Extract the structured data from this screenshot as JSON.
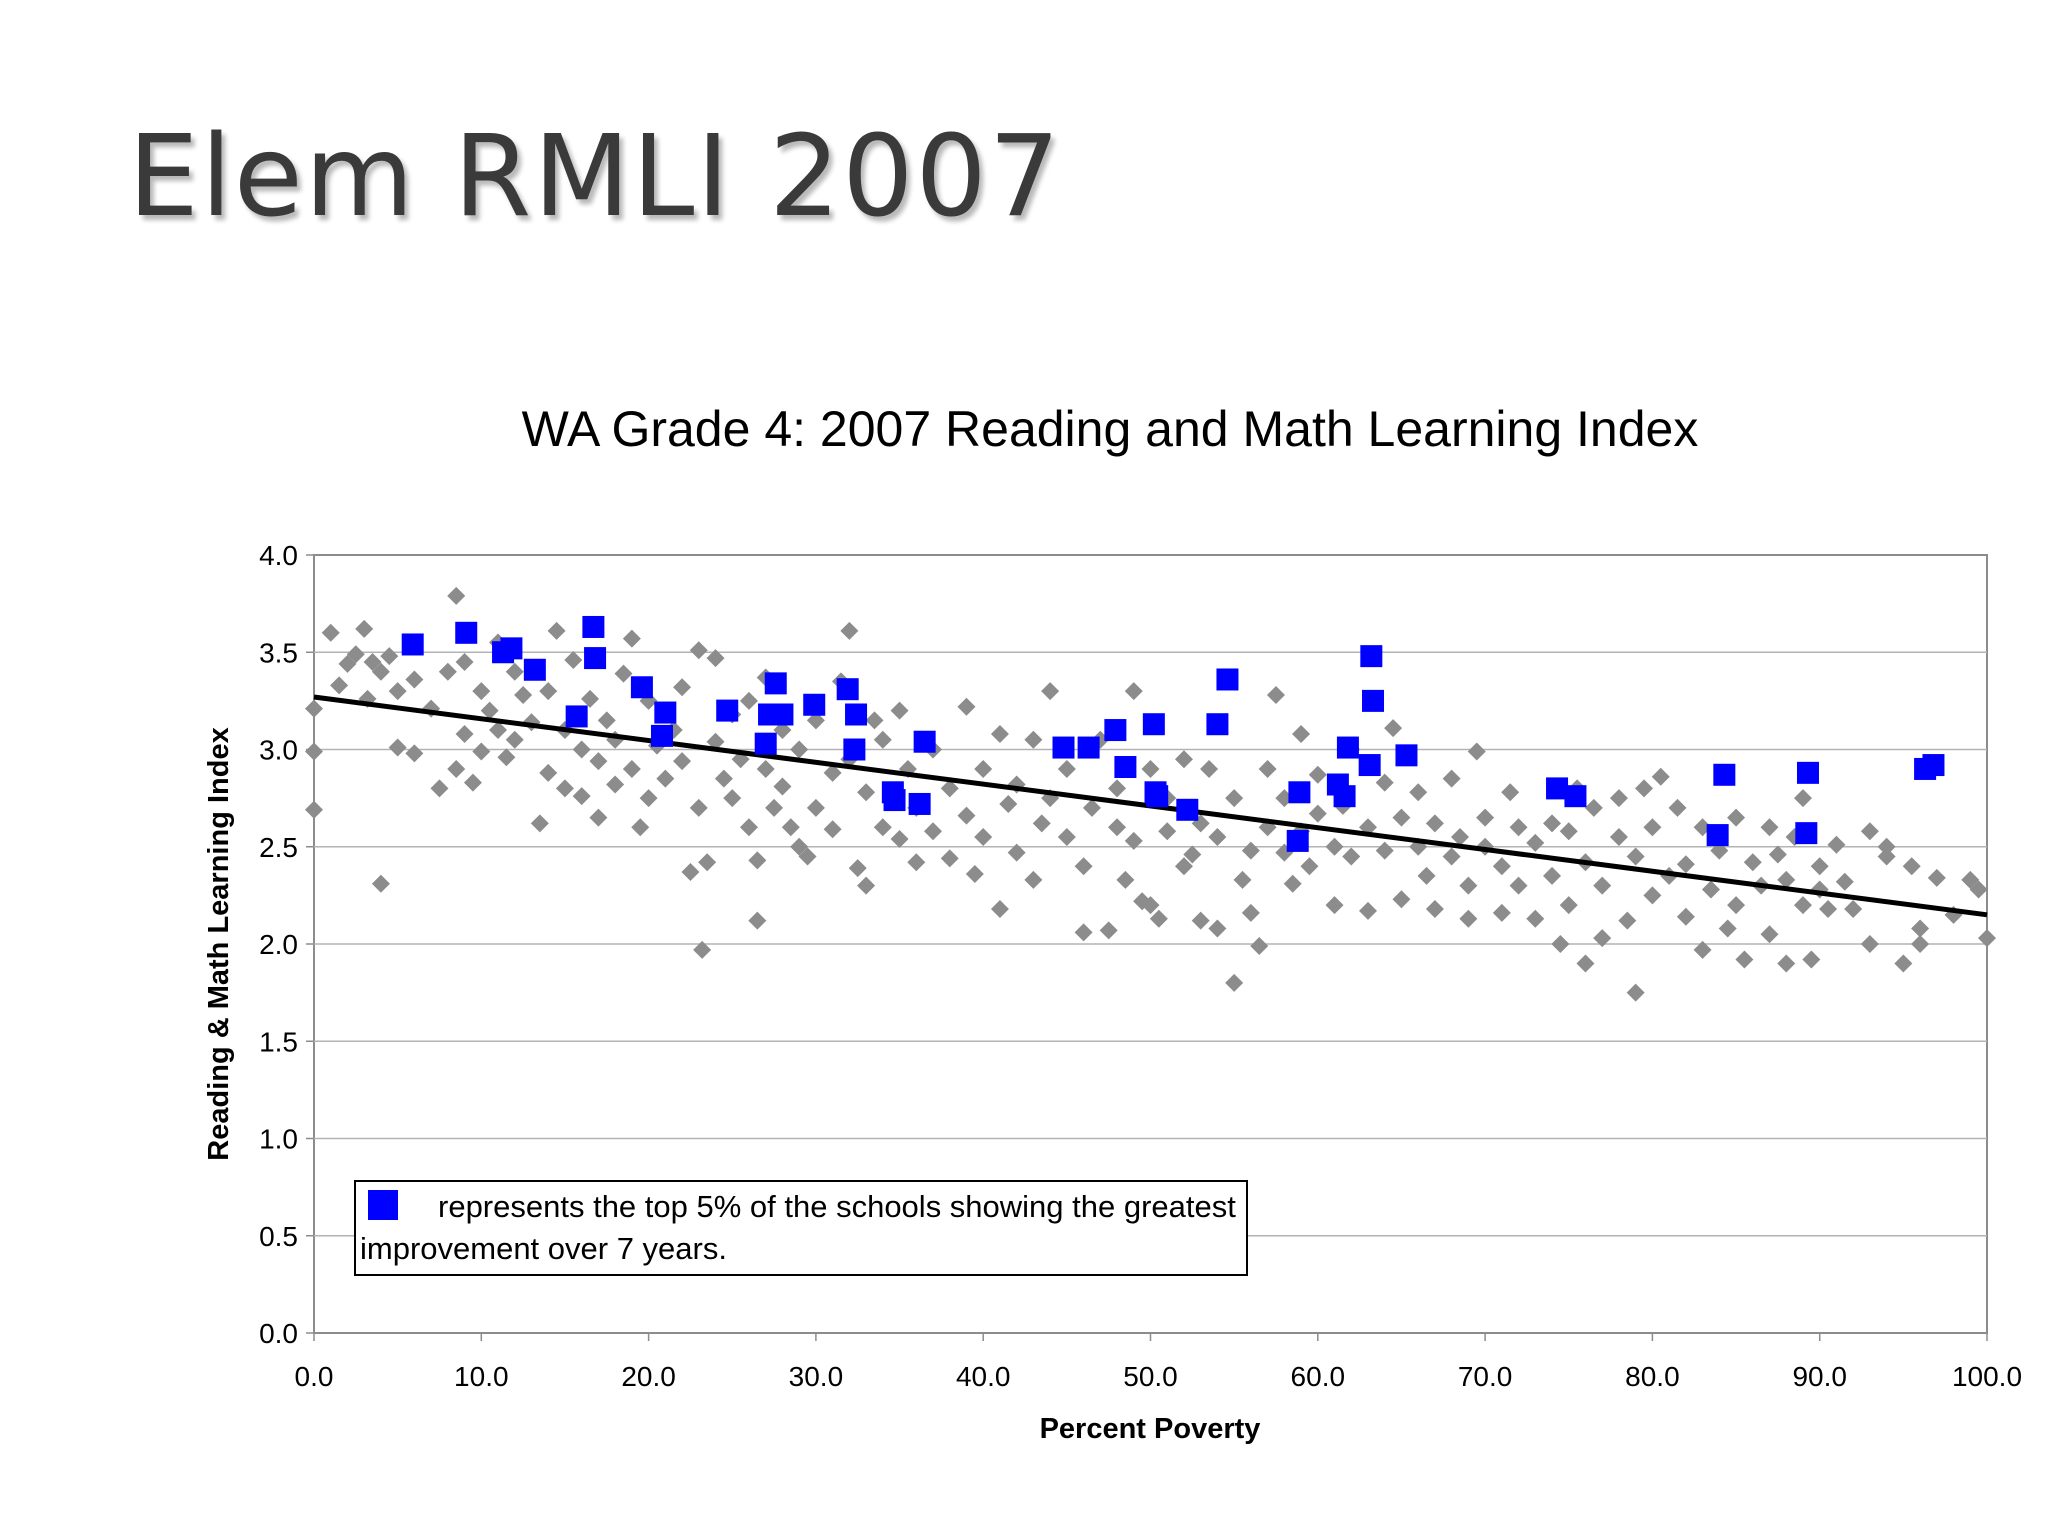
{
  "slide": {
    "title": "Elem RMLI 2007"
  },
  "legend_note": {
    "text": "represents the top 5% of the schools showing the greatest improvement over 7 years."
  },
  "colors": {
    "background_series": "#8c8c8c",
    "highlight_series": "#0000ff",
    "trendline": "#000000",
    "grid": "#b3b3b3"
  },
  "chart_data": {
    "type": "scatter",
    "title": "WA Grade 4: 2007 Reading and Math Learning Index",
    "xlabel": "Percent Poverty",
    "ylabel": "Reading & Math Learning Index",
    "xlim": [
      0,
      100
    ],
    "ylim": [
      0,
      4
    ],
    "x_ticks": [
      "0.0",
      "10.0",
      "20.0",
      "30.0",
      "40.0",
      "50.0",
      "60.0",
      "70.0",
      "80.0",
      "90.0",
      "100.0"
    ],
    "y_ticks": [
      "0.0",
      "0.5",
      "1.0",
      "1.5",
      "2.0",
      "2.5",
      "3.0",
      "3.5",
      "4.0"
    ],
    "grid": true,
    "series": [
      {
        "marker": "diamond",
        "color": "#8c8c8c",
        "points": [
          [
            0,
            3.21
          ],
          [
            0,
            2.99
          ],
          [
            0,
            2.69
          ],
          [
            1,
            3.6
          ],
          [
            1.5,
            3.33
          ],
          [
            2,
            3.44
          ],
          [
            2.5,
            3.49
          ],
          [
            3,
            3.62
          ],
          [
            3.2,
            3.26
          ],
          [
            3.5,
            3.45
          ],
          [
            4,
            3.4
          ],
          [
            4,
            2.31
          ],
          [
            4.5,
            3.48
          ],
          [
            5,
            3.3
          ],
          [
            5,
            3.01
          ],
          [
            6,
            3.36
          ],
          [
            6,
            2.98
          ],
          [
            7,
            3.21
          ],
          [
            7.5,
            2.8
          ],
          [
            8,
            3.4
          ],
          [
            8.5,
            3.79
          ],
          [
            8.5,
            2.9
          ],
          [
            9,
            3.45
          ],
          [
            9,
            3.08
          ],
          [
            9.5,
            2.83
          ],
          [
            10,
            3.3
          ],
          [
            10,
            2.99
          ],
          [
            10.5,
            3.2
          ],
          [
            11,
            3.55
          ],
          [
            11,
            3.1
          ],
          [
            11.5,
            2.96
          ],
          [
            12,
            3.4
          ],
          [
            12,
            3.05
          ],
          [
            12.5,
            3.28
          ],
          [
            13,
            3.14
          ],
          [
            13.5,
            2.62
          ],
          [
            14,
            3.3
          ],
          [
            14,
            2.88
          ],
          [
            14.5,
            3.61
          ],
          [
            15,
            3.1
          ],
          [
            15,
            2.8
          ],
          [
            15.5,
            3.46
          ],
          [
            16,
            3.0
          ],
          [
            16,
            2.76
          ],
          [
            16.5,
            3.26
          ],
          [
            17,
            2.94
          ],
          [
            17,
            2.65
          ],
          [
            17.5,
            3.15
          ],
          [
            18,
            3.05
          ],
          [
            18,
            2.82
          ],
          [
            18.5,
            3.39
          ],
          [
            19,
            3.57
          ],
          [
            19,
            2.9
          ],
          [
            19.5,
            2.6
          ],
          [
            20,
            3.25
          ],
          [
            20,
            2.75
          ],
          [
            20.5,
            3.02
          ],
          [
            21,
            2.85
          ],
          [
            21.5,
            3.1
          ],
          [
            22,
            3.32
          ],
          [
            22,
            2.94
          ],
          [
            22.5,
            2.37
          ],
          [
            23,
            3.51
          ],
          [
            23,
            2.7
          ],
          [
            23.2,
            1.97
          ],
          [
            23.5,
            2.42
          ],
          [
            24,
            3.47
          ],
          [
            24,
            3.04
          ],
          [
            24.5,
            2.85
          ],
          [
            25,
            3.18
          ],
          [
            25,
            2.75
          ],
          [
            25.5,
            2.95
          ],
          [
            26,
            3.25
          ],
          [
            26,
            2.6
          ],
          [
            26.5,
            2.43
          ],
          [
            26.5,
            2.12
          ],
          [
            27,
            3.37
          ],
          [
            27,
            2.9
          ],
          [
            27.5,
            2.7
          ],
          [
            28,
            3.1
          ],
          [
            28,
            2.81
          ],
          [
            28.5,
            2.6
          ],
          [
            29,
            3.0
          ],
          [
            29,
            2.5
          ],
          [
            29.5,
            2.45
          ],
          [
            30,
            3.15
          ],
          [
            30,
            2.7
          ],
          [
            31,
            2.88
          ],
          [
            31,
            2.59
          ],
          [
            31.5,
            3.35
          ],
          [
            32,
            3.61
          ],
          [
            32,
            2.95
          ],
          [
            32.5,
            2.39
          ],
          [
            33,
            2.3
          ],
          [
            33,
            2.78
          ],
          [
            33.5,
            3.15
          ],
          [
            34,
            2.6
          ],
          [
            34,
            3.05
          ],
          [
            35,
            3.2
          ],
          [
            35,
            2.54
          ],
          [
            35.5,
            2.9
          ],
          [
            36,
            2.42
          ],
          [
            36,
            2.7
          ],
          [
            37,
            3.0
          ],
          [
            37,
            2.58
          ],
          [
            38,
            2.8
          ],
          [
            38,
            2.44
          ],
          [
            39,
            3.22
          ],
          [
            39,
            2.66
          ],
          [
            39.5,
            2.36
          ],
          [
            40,
            2.9
          ],
          [
            40,
            2.55
          ],
          [
            41,
            3.08
          ],
          [
            41,
            2.18
          ],
          [
            41.5,
            2.72
          ],
          [
            42,
            2.47
          ],
          [
            42,
            2.82
          ],
          [
            43,
            3.05
          ],
          [
            43,
            2.33
          ],
          [
            43.5,
            2.62
          ],
          [
            44,
            3.3
          ],
          [
            44,
            2.75
          ],
          [
            45,
            2.55
          ],
          [
            45,
            2.9
          ],
          [
            46,
            2.4
          ],
          [
            46,
            2.06
          ],
          [
            46.5,
            2.7
          ],
          [
            47,
            3.05
          ],
          [
            47.5,
            2.07
          ],
          [
            48,
            2.6
          ],
          [
            48,
            2.8
          ],
          [
            48.5,
            2.33
          ],
          [
            49,
            3.3
          ],
          [
            49,
            2.53
          ],
          [
            49.5,
            2.22
          ],
          [
            50,
            2.9
          ],
          [
            50,
            2.2
          ],
          [
            50.5,
            2.13
          ],
          [
            51,
            2.58
          ],
          [
            51,
            2.75
          ],
          [
            52,
            2.4
          ],
          [
            52,
            2.95
          ],
          [
            52.5,
            2.46
          ],
          [
            53,
            2.62
          ],
          [
            53,
            2.12
          ],
          [
            53.5,
            2.9
          ],
          [
            54,
            2.08
          ],
          [
            54,
            2.55
          ],
          [
            55,
            1.8
          ],
          [
            55,
            2.75
          ],
          [
            55.5,
            2.33
          ],
          [
            56,
            2.48
          ],
          [
            56,
            2.16
          ],
          [
            56.5,
            1.99
          ],
          [
            57,
            2.9
          ],
          [
            57,
            2.6
          ],
          [
            57.5,
            3.28
          ],
          [
            58,
            2.47
          ],
          [
            58,
            2.75
          ],
          [
            58.5,
            2.31
          ],
          [
            59,
            3.08
          ],
          [
            59,
            2.58
          ],
          [
            59.5,
            2.4
          ],
          [
            60,
            2.67
          ],
          [
            60,
            2.87
          ],
          [
            61,
            2.5
          ],
          [
            61,
            2.2
          ],
          [
            61.5,
            2.71
          ],
          [
            62,
            3.0
          ],
          [
            62,
            2.45
          ],
          [
            63,
            2.6
          ],
          [
            63,
            2.17
          ],
          [
            64,
            2.83
          ],
          [
            64,
            2.48
          ],
          [
            64.5,
            3.11
          ],
          [
            65,
            2.65
          ],
          [
            65,
            2.23
          ],
          [
            66,
            2.5
          ],
          [
            66,
            2.78
          ],
          [
            66.5,
            2.35
          ],
          [
            67,
            2.62
          ],
          [
            67,
            2.18
          ],
          [
            68,
            2.45
          ],
          [
            68,
            2.85
          ],
          [
            68.5,
            2.55
          ],
          [
            69,
            2.3
          ],
          [
            69,
            2.13
          ],
          [
            69.5,
            2.99
          ],
          [
            70,
            2.5
          ],
          [
            70,
            2.65
          ],
          [
            71,
            2.4
          ],
          [
            71,
            2.16
          ],
          [
            71.5,
            2.78
          ],
          [
            72,
            2.6
          ],
          [
            72,
            2.3
          ],
          [
            73,
            2.52
          ],
          [
            73,
            2.13
          ],
          [
            74,
            2.62
          ],
          [
            74,
            2.35
          ],
          [
            74.5,
            2.0
          ],
          [
            75,
            2.58
          ],
          [
            75,
            2.2
          ],
          [
            75.5,
            2.8
          ],
          [
            76,
            2.42
          ],
          [
            76,
            1.9
          ],
          [
            76.5,
            2.7
          ],
          [
            77,
            2.3
          ],
          [
            77,
            2.03
          ],
          [
            78,
            2.55
          ],
          [
            78,
            2.75
          ],
          [
            78.5,
            2.12
          ],
          [
            79,
            2.45
          ],
          [
            79,
            1.75
          ],
          [
            79.5,
            2.8
          ],
          [
            80,
            2.6
          ],
          [
            80,
            2.25
          ],
          [
            80.5,
            2.86
          ],
          [
            81,
            2.35
          ],
          [
            81.5,
            2.7
          ],
          [
            82,
            2.41
          ],
          [
            82,
            2.14
          ],
          [
            83,
            2.6
          ],
          [
            83,
            1.97
          ],
          [
            83.5,
            2.28
          ],
          [
            84,
            2.48
          ],
          [
            84.5,
            2.08
          ],
          [
            85,
            2.65
          ],
          [
            85,
            2.2
          ],
          [
            85.5,
            1.92
          ],
          [
            86,
            2.42
          ],
          [
            86.5,
            2.3
          ],
          [
            87,
            2.6
          ],
          [
            87,
            2.05
          ],
          [
            87.5,
            2.46
          ],
          [
            88,
            2.33
          ],
          [
            88,
            1.9
          ],
          [
            88.5,
            2.55
          ],
          [
            89,
            2.75
          ],
          [
            89,
            2.2
          ],
          [
            89.5,
            1.92
          ],
          [
            90,
            2.4
          ],
          [
            90,
            2.28
          ],
          [
            90.5,
            2.18
          ],
          [
            91,
            2.51
          ],
          [
            91.5,
            2.32
          ],
          [
            92,
            2.18
          ],
          [
            93,
            2.58
          ],
          [
            93,
            2.0
          ],
          [
            94,
            2.45
          ],
          [
            94,
            2.5
          ],
          [
            95,
            1.9
          ],
          [
            95.5,
            2.4
          ],
          [
            96,
            2.08
          ],
          [
            96,
            2.0
          ],
          [
            97,
            2.34
          ],
          [
            98,
            2.15
          ],
          [
            99,
            2.33
          ],
          [
            99.5,
            2.28
          ],
          [
            100,
            2.03
          ]
        ]
      },
      {
        "name": "represents the top 5% of the schools showing the greatest improvement over 7 years.",
        "marker": "square",
        "color": "#0000ff",
        "points": [
          [
            5.9,
            3.54
          ],
          [
            9.1,
            3.6
          ],
          [
            11.3,
            3.5
          ],
          [
            11.8,
            3.52
          ],
          [
            13.2,
            3.41
          ],
          [
            16.7,
            3.63
          ],
          [
            16.8,
            3.47
          ],
          [
            15.7,
            3.17
          ],
          [
            19.6,
            3.32
          ],
          [
            20.8,
            3.07
          ],
          [
            21.0,
            3.19
          ],
          [
            24.7,
            3.2
          ],
          [
            27.0,
            3.03
          ],
          [
            27.2,
            3.18
          ],
          [
            27.6,
            3.34
          ],
          [
            28.0,
            3.18
          ],
          [
            29.9,
            3.23
          ],
          [
            31.9,
            3.31
          ],
          [
            32.4,
            3.18
          ],
          [
            32.3,
            3.0
          ],
          [
            34.6,
            2.78
          ],
          [
            34.7,
            2.74
          ],
          [
            36.2,
            2.72
          ],
          [
            36.5,
            3.04
          ],
          [
            44.8,
            3.01
          ],
          [
            46.3,
            3.01
          ],
          [
            47.9,
            3.1
          ],
          [
            48.5,
            2.91
          ],
          [
            50.2,
            3.13
          ],
          [
            50.3,
            2.78
          ],
          [
            50.4,
            2.76
          ],
          [
            52.2,
            2.69
          ],
          [
            54.0,
            3.13
          ],
          [
            54.6,
            3.36
          ],
          [
            58.9,
            2.78
          ],
          [
            58.8,
            2.53
          ],
          [
            61.2,
            2.82
          ],
          [
            61.6,
            2.76
          ],
          [
            61.8,
            3.01
          ],
          [
            63.2,
            3.48
          ],
          [
            63.3,
            3.25
          ],
          [
            63.1,
            2.92
          ],
          [
            65.3,
            2.97
          ],
          [
            74.3,
            2.8
          ],
          [
            75.4,
            2.76
          ],
          [
            83.9,
            2.56
          ],
          [
            84.3,
            2.87
          ],
          [
            89.3,
            2.88
          ],
          [
            89.2,
            2.57
          ],
          [
            96.3,
            2.9
          ],
          [
            96.8,
            2.92
          ]
        ]
      }
    ],
    "trendline": {
      "type": "linear",
      "points": [
        [
          0,
          3.27
        ],
        [
          100,
          2.15
        ]
      ]
    }
  }
}
